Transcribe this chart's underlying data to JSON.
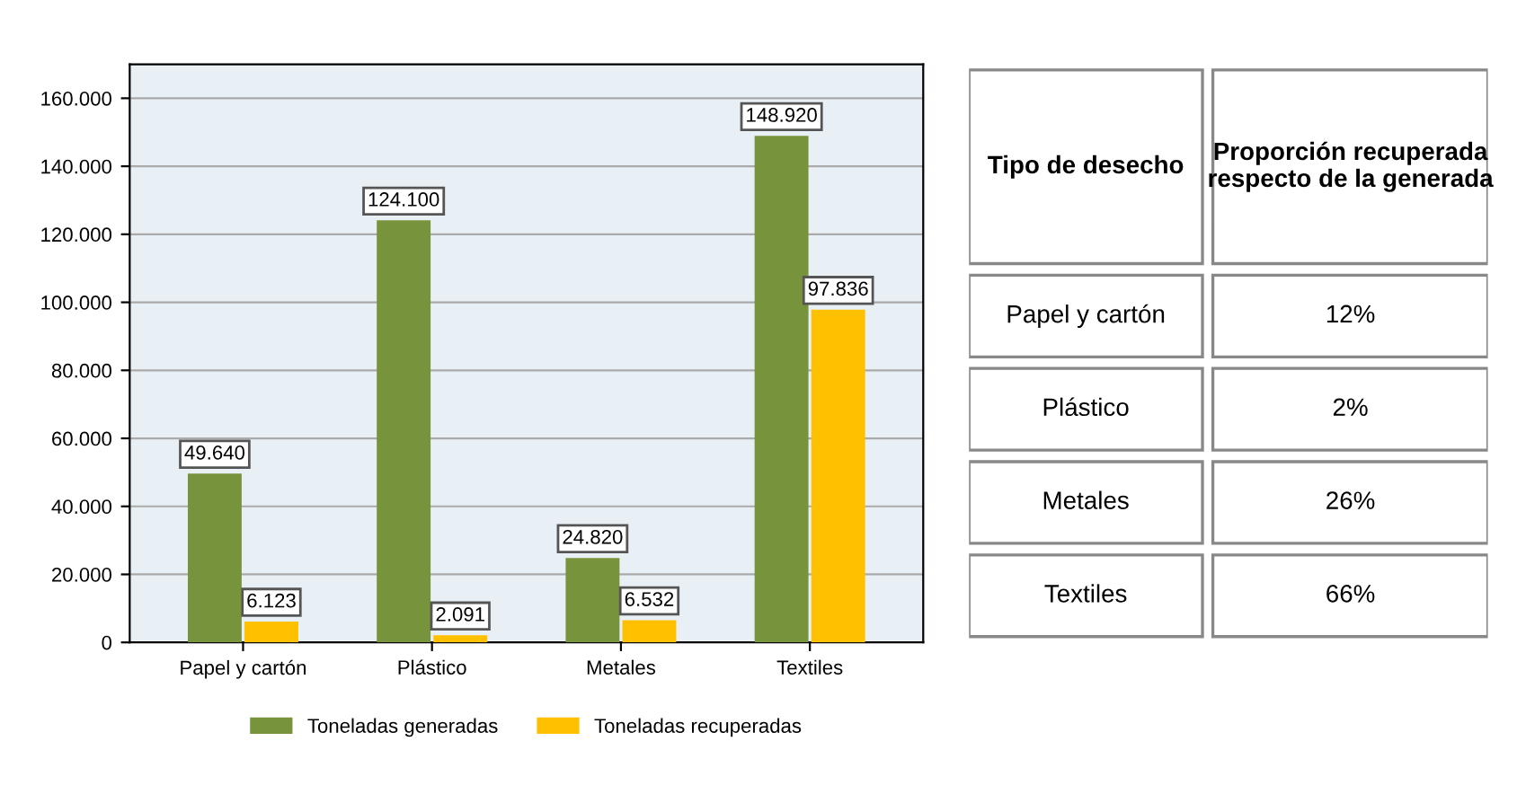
{
  "chart_data": {
    "type": "bar",
    "categories": [
      "Papel y cartón",
      "Plástico",
      "Metales",
      "Textiles"
    ],
    "series": [
      {
        "name": "Toneladas generadas",
        "color": "#77933c",
        "values": [
          49640,
          124100,
          24820,
          148920
        ],
        "value_labels": [
          "49.640",
          "124.100",
          "24.820",
          "148.920"
        ]
      },
      {
        "name": "Toneladas recuperadas",
        "color": "#ffc000",
        "values": [
          6123,
          2091,
          6532,
          97836
        ],
        "value_labels": [
          "6.123",
          "2.091",
          "6.532",
          "97.836"
        ]
      }
    ],
    "ylim": [
      0,
      170000
    ],
    "yticks": [
      0,
      {
        "value": 20000,
        "label": "20.000"
      },
      {
        "value": 40000,
        "label": "40.000"
      },
      {
        "value": 60000,
        "label": "60.000"
      },
      {
        "value": 80000,
        "label": "80.000"
      },
      {
        "value": 100000,
        "label": "100.000"
      },
      {
        "value": 120000,
        "label": "120.000"
      },
      {
        "value": 140000,
        "label": "140.000"
      },
      {
        "value": 160000,
        "label": "160.000"
      }
    ],
    "grid": "y",
    "legend": "bottom",
    "annotations": [
      "Tipo de desecho",
      "Proporción recuperada respecto de la generada",
      "Papel y cartón",
      "12%",
      "Plástico",
      "2%",
      "Metales",
      "26%",
      "Textiles",
      "66%"
    ]
  }
}
